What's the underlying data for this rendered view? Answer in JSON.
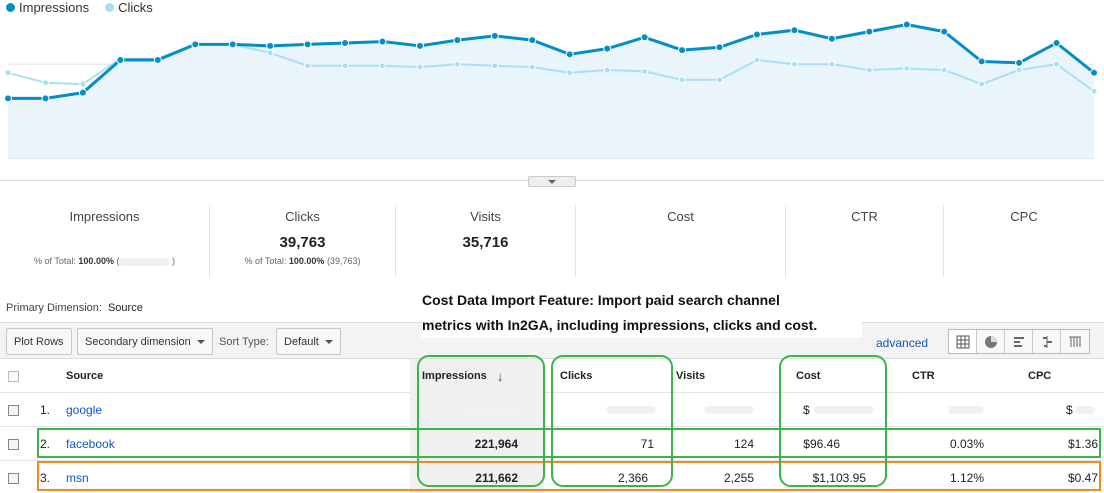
{
  "legend": {
    "impressions_label": "Impressions",
    "clicks_label": "Clicks",
    "impressions_color": "#058dc7",
    "clicks_color": "#aadff3"
  },
  "chart_data": {
    "type": "line",
    "series": [
      {
        "name": "Impressions",
        "color": "#058dc7",
        "values": [
          0.42,
          0.42,
          0.46,
          0.69,
          0.69,
          0.8,
          0.8,
          0.79,
          0.8,
          0.81,
          0.82,
          0.79,
          0.83,
          0.86,
          0.83,
          0.73,
          0.77,
          0.85,
          0.76,
          0.78,
          0.87,
          0.9,
          0.84,
          0.89,
          0.94,
          0.89,
          0.68,
          0.67,
          0.81,
          0.6
        ]
      },
      {
        "name": "Clicks",
        "color": "#aadff3",
        "values": [
          0.6,
          0.53,
          0.52,
          0.7,
          0.7,
          0.8,
          0.8,
          0.74,
          0.65,
          0.65,
          0.65,
          0.64,
          0.66,
          0.65,
          0.64,
          0.6,
          0.62,
          0.61,
          0.55,
          0.55,
          0.69,
          0.66,
          0.66,
          0.62,
          0.63,
          0.62,
          0.52,
          0.62,
          0.66,
          0.47
        ]
      }
    ],
    "grid": true
  },
  "scorecards": [
    {
      "label": "Impressions",
      "value": "",
      "sub_prefix": "% of Total:",
      "sub_bold": "100.00%",
      "sub_suffix": " ("
    },
    {
      "label": "Clicks",
      "value": "39,763",
      "sub_prefix": "% of Total:",
      "sub_bold": "100.00%",
      "sub_suffix": " (39,763)"
    },
    {
      "label": "Visits",
      "value": "35,716",
      "sub_prefix": "",
      "sub_bold": "",
      "sub_suffix": ""
    },
    {
      "label": "Cost",
      "value": "",
      "sub_prefix": "",
      "sub_bold": "",
      "sub_suffix": ""
    },
    {
      "label": "CTR",
      "value": "",
      "sub_prefix": "",
      "sub_bold": "",
      "sub_suffix": ""
    },
    {
      "label": "CPC",
      "value": "",
      "sub_prefix": "",
      "sub_bold": "",
      "sub_suffix": ""
    }
  ],
  "primary_dimension": {
    "label": "Primary Dimension:",
    "value": "Source"
  },
  "annotation": {
    "line1": "Cost Data Import Feature: Import paid search channel",
    "line2": "metrics with In2GA, including impressions, clicks and cost."
  },
  "toolbar": {
    "plot_rows": "Plot Rows",
    "secondary_dimension": "Secondary dimension",
    "sort_type_label": "Sort Type:",
    "sort_type_value": "Default",
    "advanced": "advanced",
    "view_icons": [
      "grid-view-icon",
      "pie-view-icon",
      "bar-view-icon",
      "comparison-view-icon",
      "pivot-view-icon"
    ]
  },
  "table": {
    "headers": {
      "source": "Source",
      "impressions": "Impressions",
      "sort_arrow": "↓",
      "clicks": "Clicks",
      "visits": "Visits",
      "cost": "Cost",
      "ctr": "CTR",
      "cpc": "CPC"
    },
    "rows": [
      {
        "index": "1.",
        "source": "google",
        "impressions": "",
        "clicks": "",
        "visits": "",
        "cost": "$",
        "ctr": "",
        "cpc": "$"
      },
      {
        "index": "2.",
        "source": "facebook",
        "impressions": "221,964",
        "clicks": "71",
        "visits": "124",
        "cost": "$96.46",
        "ctr": "0.03%",
        "cpc": "$1.36"
      },
      {
        "index": "3.",
        "source": "msn",
        "impressions": "211,662",
        "clicks": "2,366",
        "visits": "2,255",
        "cost": "$1,103.95",
        "ctr": "1.12%",
        "cpc": "$0.47"
      }
    ]
  }
}
